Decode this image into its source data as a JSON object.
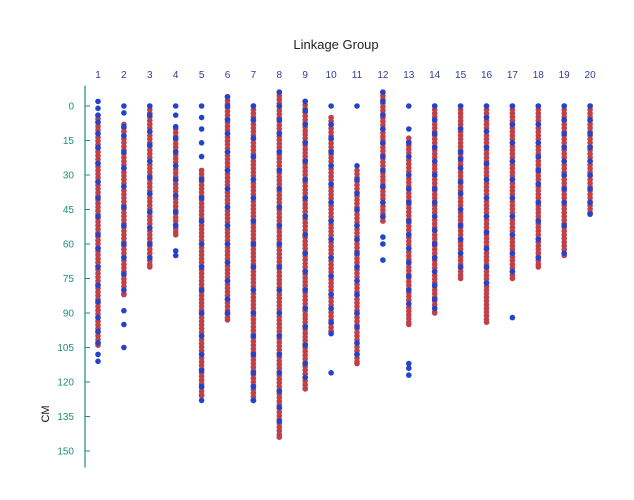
{
  "chart_data": {
    "type": "scatter",
    "title": "Linkage Group",
    "ylabel": "CM",
    "ylim": [
      -8,
      155
    ],
    "yticks": [
      0,
      15,
      30,
      45,
      60,
      75,
      90,
      105,
      120,
      135,
      150
    ],
    "y_inverted": true,
    "grid": false,
    "colors": {
      "red": "#c0404a",
      "blue": "#2244cc",
      "axis": "#1f8f7a",
      "group_label": "#2b3d99"
    },
    "groups": [
      {
        "label": "1",
        "red": [
          [
            4,
            104
          ]
        ],
        "blue": [
          -2,
          1,
          4,
          7,
          12,
          18,
          25,
          33,
          40,
          48,
          56,
          62,
          70,
          78,
          85,
          92,
          98,
          103,
          108,
          111
        ]
      },
      {
        "label": "2",
        "red": [
          [
            8,
            82
          ]
        ],
        "blue": [
          0,
          3,
          9,
          13,
          20,
          27,
          35,
          44,
          52,
          60,
          66,
          73,
          80,
          89,
          95,
          105
        ]
      },
      {
        "label": "3",
        "red": [
          [
            0,
            70
          ]
        ],
        "blue": [
          0,
          4,
          11,
          17,
          24,
          31,
          38,
          46,
          53,
          60,
          66
        ]
      },
      {
        "label": "4",
        "red": [
          [
            10,
            56
          ]
        ],
        "blue": [
          0,
          4,
          9,
          14,
          20,
          26,
          32,
          39,
          46,
          52,
          63,
          65
        ]
      },
      {
        "label": "5",
        "red": [
          [
            28,
            126
          ]
        ],
        "blue": [
          0,
          5,
          10,
          16,
          22,
          32,
          40,
          50,
          60,
          70,
          80,
          90,
          100,
          108,
          115,
          122,
          128
        ]
      },
      {
        "label": "6",
        "red": [
          [
            -4,
            93
          ]
        ],
        "blue": [
          -4,
          0,
          6,
          12,
          20,
          28,
          36,
          44,
          52,
          60,
          68,
          76,
          84,
          90
        ]
      },
      {
        "label": "7",
        "red": [
          [
            0,
            128
          ]
        ],
        "blue": [
          0,
          6,
          14,
          22,
          32,
          40,
          50,
          60,
          70,
          80,
          90,
          100,
          108,
          116,
          122,
          128
        ]
      },
      {
        "label": "8",
        "red": [
          [
            -6,
            144
          ]
        ],
        "blue": [
          -6,
          0,
          6,
          12,
          20,
          28,
          36,
          44,
          52,
          60,
          70,
          80,
          90,
          100,
          108,
          116,
          124,
          131,
          137
        ]
      },
      {
        "label": "9",
        "red": [
          [
            -2,
            123
          ]
        ],
        "blue": [
          -2,
          2,
          8,
          16,
          24,
          32,
          40,
          48,
          56,
          64,
          72,
          80,
          88,
          96,
          104,
          112,
          118
        ]
      },
      {
        "label": "10",
        "red": [
          [
            5,
            98
          ]
        ],
        "blue": [
          0,
          8,
          14,
          20,
          26,
          34,
          42,
          50,
          58,
          66,
          74,
          82,
          88,
          94,
          99,
          116
        ]
      },
      {
        "label": "11",
        "red": [
          [
            28,
            112
          ]
        ],
        "blue": [
          0,
          26,
          32,
          38,
          45,
          52,
          58,
          64,
          70,
          76,
          82,
          90,
          96,
          103,
          108
        ]
      },
      {
        "label": "12",
        "red": [
          [
            -6,
            50
          ]
        ],
        "blue": [
          -6,
          -2,
          4,
          10,
          16,
          22,
          28,
          35,
          42,
          48,
          57,
          60,
          67
        ]
      },
      {
        "label": "13",
        "red": [
          [
            14,
            95
          ]
        ],
        "blue": [
          0,
          10,
          16,
          22,
          30,
          36,
          42,
          50,
          56,
          62,
          68,
          74,
          80,
          86,
          112,
          114,
          117
        ]
      },
      {
        "label": "14",
        "red": [
          [
            0,
            90
          ]
        ],
        "blue": [
          0,
          6,
          12,
          18,
          24,
          30,
          36,
          42,
          48,
          54,
          60,
          66,
          72,
          78,
          84,
          88
        ]
      },
      {
        "label": "15",
        "red": [
          [
            0,
            75
          ]
        ],
        "blue": [
          0,
          10,
          20,
          23,
          27,
          33,
          38,
          45,
          52,
          58,
          64,
          70
        ]
      },
      {
        "label": "16",
        "red": [
          [
            0,
            94
          ]
        ],
        "blue": [
          0,
          5,
          11,
          18,
          25,
          32,
          40,
          48,
          55,
          62,
          70,
          77
        ]
      },
      {
        "label": "17",
        "red": [
          [
            0,
            75
          ]
        ],
        "blue": [
          0,
          8,
          16,
          24,
          32,
          40,
          48,
          56,
          64,
          72,
          92
        ]
      },
      {
        "label": "18",
        "red": [
          [
            0,
            70
          ]
        ],
        "blue": [
          0,
          8,
          16,
          22,
          28,
          34,
          42,
          50,
          58,
          66
        ]
      },
      {
        "label": "19",
        "red": [
          [
            0,
            65
          ]
        ],
        "blue": [
          0,
          6,
          12,
          18,
          24,
          30,
          36,
          42,
          52,
          64
        ]
      },
      {
        "label": "20",
        "red": [
          [
            0,
            47
          ]
        ],
        "blue": [
          0,
          6,
          12,
          18,
          24,
          30,
          36,
          42,
          47
        ]
      }
    ]
  }
}
